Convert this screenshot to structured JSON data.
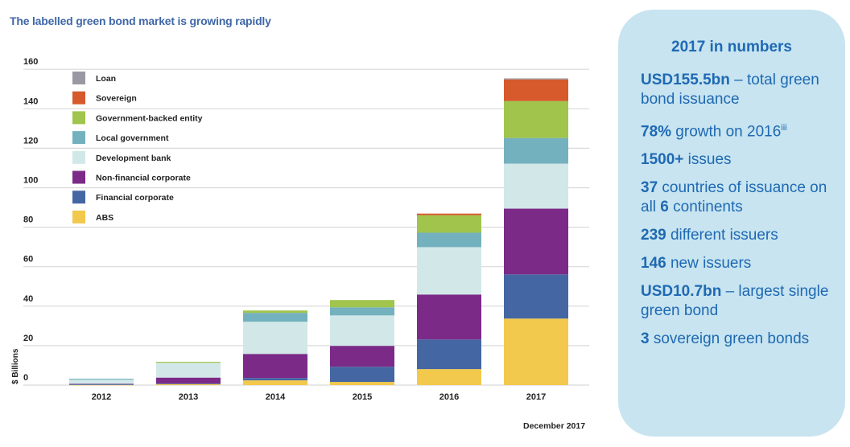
{
  "title": "The labelled green bond market is growing rapidly",
  "note": "December 2017",
  "colors": {
    "title": "#3f67a8",
    "panel_bg": "#c7e4f0",
    "panel_text": "#1f69b3",
    "grid": "#d9d9d9"
  },
  "chart_data": {
    "type": "bar",
    "stacked": true,
    "title": "The labelled green bond market is growing rapidly",
    "xlabel": "",
    "ylabel": "$ Billions",
    "ylim": [
      0,
      160
    ],
    "yticks": [
      0,
      20,
      40,
      60,
      80,
      100,
      120,
      140,
      160
    ],
    "grid": true,
    "legend_position": "top-left",
    "categories": [
      "2012",
      "2013",
      "2014",
      "2015",
      "2016",
      "2017"
    ],
    "series": [
      {
        "name": "ABS",
        "color": "#f2c94c",
        "values": [
          0.1,
          0.5,
          2.4,
          1.6,
          8.1,
          33.7
        ]
      },
      {
        "name": "Financial corporate",
        "color": "#4466a3",
        "values": [
          0.5,
          0.3,
          1.2,
          7.7,
          15.0,
          22.4
        ]
      },
      {
        "name": "Non-financial corporate",
        "color": "#7b2a88",
        "values": [
          0.1,
          3.0,
          12.2,
          10.6,
          22.8,
          33.3
        ]
      },
      {
        "name": "Development bank",
        "color": "#d2e8e8",
        "values": [
          2.0,
          7.5,
          16.3,
          15.4,
          24.0,
          22.8
        ]
      },
      {
        "name": "Local government",
        "color": "#74b1be",
        "values": [
          0.5,
          0.0,
          4.5,
          4.1,
          7.3,
          13.0
        ]
      },
      {
        "name": "Government-backed entity",
        "color": "#a0c44c",
        "values": [
          0.0,
          0.5,
          1.2,
          3.7,
          8.9,
          18.7
        ]
      },
      {
        "name": "Sovereign",
        "color": "#d65a2c",
        "values": [
          0.0,
          0.0,
          0.0,
          0.0,
          0.8,
          11.0
        ]
      },
      {
        "name": "Loan",
        "color": "#9a99a3",
        "values": [
          0.0,
          0.0,
          0.0,
          0.0,
          0.0,
          0.5
        ]
      }
    ],
    "legend_order": [
      "Loan",
      "Sovereign",
      "Government-backed entity",
      "Local government",
      "Development bank",
      "Non-financial corporate",
      "Financial corporate",
      "ABS"
    ]
  },
  "panel": {
    "heading": "2017 in numbers",
    "stats": [
      {
        "bold": "USD155.5bn",
        "text": " – total green bond issuance",
        "bold2": "",
        "text2": "",
        "sup": ""
      },
      {
        "bold": "78%",
        "text": " growth on 2016",
        "bold2": "",
        "text2": "",
        "sup": "iii"
      },
      {
        "bold": "1500+",
        "text": " issues",
        "bold2": "",
        "text2": "",
        "sup": ""
      },
      {
        "bold": "37",
        "text": " countries of issuance on all ",
        "bold2": "6",
        "text2": " continents",
        "sup": ""
      },
      {
        "bold": "239",
        "text": " different issuers",
        "bold2": "",
        "text2": "",
        "sup": ""
      },
      {
        "bold": "146",
        "text": " new issuers",
        "bold2": "",
        "text2": "",
        "sup": ""
      },
      {
        "bold": "USD10.7bn",
        "text": " – largest single green bond",
        "bold2": "",
        "text2": "",
        "sup": ""
      },
      {
        "bold": "3",
        "text": " sovereign green bonds",
        "bold2": "",
        "text2": "",
        "sup": ""
      }
    ]
  }
}
